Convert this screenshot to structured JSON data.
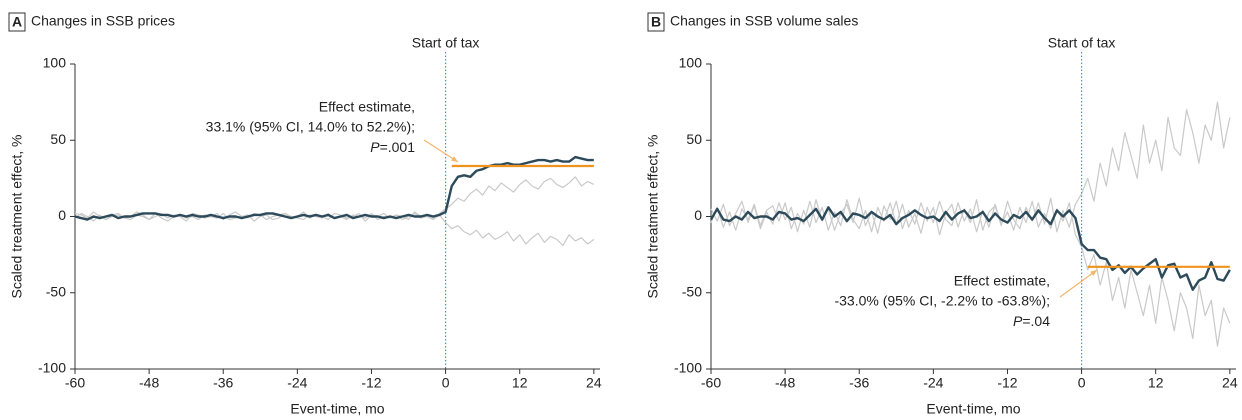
{
  "chart_data": [
    {
      "type": "line",
      "panel": "A",
      "title": "Changes in SSB prices",
      "xlabel": "Event-time, mo",
      "ylabel": "Scaled treatment effect, %",
      "event_label": "Start of tax",
      "event_x": 0,
      "annotation": [
        "Effect estimate,",
        "33.1% (95% CI, 14.0% to 52.2%);"
      ],
      "p_label": "P",
      "p_value": "=.001",
      "effect": {
        "value": 33.1,
        "x": [
          1,
          24
        ],
        "color": "#f0931e"
      },
      "xlim": [
        -60,
        25
      ],
      "ylim": [
        -100,
        100
      ],
      "xticks": [
        -60,
        -48,
        -36,
        -24,
        -12,
        0,
        12,
        24
      ],
      "yticks": [
        -100,
        -50,
        0,
        50,
        100
      ],
      "x": [
        -60,
        -59,
        -58,
        -57,
        -56,
        -55,
        -54,
        -53,
        -52,
        -51,
        -50,
        -49,
        -48,
        -47,
        -46,
        -45,
        -44,
        -43,
        -42,
        -41,
        -40,
        -39,
        -38,
        -37,
        -36,
        -35,
        -34,
        -33,
        -32,
        -31,
        -30,
        -29,
        -28,
        -27,
        -26,
        -25,
        -24,
        -23,
        -22,
        -21,
        -20,
        -19,
        -18,
        -17,
        -16,
        -15,
        -14,
        -13,
        -12,
        -11,
        -10,
        -9,
        -8,
        -7,
        -6,
        -5,
        -4,
        -3,
        -2,
        -1,
        0,
        1,
        2,
        3,
        4,
        5,
        6,
        7,
        8,
        9,
        10,
        11,
        12,
        13,
        14,
        15,
        16,
        17,
        18,
        19,
        20,
        21,
        22,
        23,
        24
      ],
      "placebo_color": "#c9c9c9",
      "placebo": [
        [
          2,
          1,
          -1,
          3,
          0,
          -2,
          1,
          2,
          -1,
          0,
          3,
          1,
          -2,
          0,
          2,
          -1,
          1,
          0,
          -3,
          2,
          1,
          -1,
          0,
          2,
          -2,
          1,
          3,
          0,
          -1,
          2,
          1,
          -2,
          0,
          1,
          2,
          -1,
          0,
          3,
          -1,
          1,
          0,
          -2,
          2,
          1,
          -1,
          0,
          2,
          -3,
          1,
          0,
          2,
          -1,
          1,
          0,
          -2,
          3,
          0,
          1,
          -1,
          2,
          5,
          8,
          12,
          10,
          15,
          18,
          14,
          20,
          17,
          22,
          19,
          16,
          21,
          24,
          20,
          18,
          23,
          25,
          21,
          19,
          22,
          26,
          20,
          23,
          21
        ],
        [
          -1,
          2,
          0,
          -3,
          1,
          -2,
          0,
          1,
          -1,
          -2,
          1,
          0,
          -2,
          2,
          -1,
          -3,
          0,
          1,
          -1,
          0,
          -2,
          1,
          0,
          -1,
          2,
          -2,
          -1,
          0,
          1,
          -3,
          0,
          1,
          -2,
          -1,
          2,
          0,
          -1,
          -2,
          1,
          0,
          -1,
          2,
          -1,
          0,
          -2,
          1,
          0,
          -1,
          2,
          -2,
          0,
          -1,
          1,
          -2,
          0,
          2,
          -1,
          0,
          -2,
          1,
          -4,
          -8,
          -6,
          -10,
          -12,
          -9,
          -14,
          -11,
          -15,
          -13,
          -10,
          -16,
          -12,
          -18,
          -14,
          -11,
          -17,
          -13,
          -15,
          -19,
          -12,
          -16,
          -14,
          -18,
          -15
        ]
      ],
      "series": [
        {
          "color": "#2c4a5a",
          "values": [
            0,
            -1,
            -2,
            0,
            -1,
            0,
            1,
            -1,
            0,
            0,
            1,
            2,
            2,
            2,
            1,
            1,
            0,
            1,
            0,
            1,
            0,
            0,
            1,
            0,
            -1,
            0,
            0,
            -1,
            0,
            1,
            1,
            2,
            2,
            1,
            0,
            -1,
            0,
            1,
            0,
            1,
            0,
            1,
            -1,
            0,
            1,
            -1,
            0,
            1,
            0,
            0,
            -1,
            0,
            -1,
            0,
            1,
            0,
            0,
            1,
            0,
            1,
            3,
            20,
            26,
            27,
            26,
            30,
            31,
            33,
            34,
            34,
            35,
            34,
            34,
            35,
            36,
            37,
            37,
            36,
            37,
            36,
            36,
            39,
            38,
            37,
            37
          ]
        }
      ]
    },
    {
      "type": "line",
      "panel": "B",
      "title": "Changes in SSB volume sales",
      "xlabel": "Event-time, mo",
      "ylabel": "Scaled treatment effect, %",
      "event_label": "Start of tax",
      "event_x": 0,
      "annotation": [
        "Effect estimate,",
        "-33.0% (95% CI, -2.2% to -63.8%);"
      ],
      "p_label": "P",
      "p_value": "=.04",
      "effect": {
        "value": -33.0,
        "x": [
          1,
          24
        ],
        "color": "#f0931e"
      },
      "xlim": [
        -60,
        25
      ],
      "ylim": [
        -100,
        100
      ],
      "xticks": [
        -60,
        -48,
        -36,
        -24,
        -12,
        0,
        12,
        24
      ],
      "yticks": [
        -100,
        -50,
        0,
        50,
        100
      ],
      "x": [
        -60,
        -59,
        -58,
        -57,
        -56,
        -55,
        -54,
        -53,
        -52,
        -51,
        -50,
        -49,
        -48,
        -47,
        -46,
        -45,
        -44,
        -43,
        -42,
        -41,
        -40,
        -39,
        -38,
        -37,
        -36,
        -35,
        -34,
        -33,
        -32,
        -31,
        -30,
        -29,
        -28,
        -27,
        -26,
        -25,
        -24,
        -23,
        -22,
        -21,
        -20,
        -19,
        -18,
        -17,
        -16,
        -15,
        -14,
        -13,
        -12,
        -11,
        -10,
        -9,
        -8,
        -7,
        -6,
        -5,
        -4,
        -3,
        -2,
        -1,
        0,
        1,
        2,
        3,
        4,
        5,
        6,
        7,
        8,
        9,
        10,
        11,
        12,
        13,
        14,
        15,
        16,
        17,
        18,
        19,
        20,
        21,
        22,
        23,
        24
      ],
      "placebo_color": "#c9c9c9",
      "placebo": [
        [
          5,
          -3,
          8,
          -6,
          2,
          10,
          -4,
          7,
          -8,
          3,
          -5,
          9,
          -2,
          6,
          -10,
          4,
          -7,
          11,
          -3,
          5,
          -9,
          2,
          8,
          -4,
          12,
          -6,
          3,
          -11,
          7,
          -2,
          10,
          -8,
          4,
          -5,
          9,
          -3,
          6,
          -12,
          2,
          8,
          -7,
          5,
          -4,
          11,
          -9,
          3,
          7,
          -6,
          10,
          -2,
          -8,
          6,
          -3,
          9,
          -5,
          12,
          -10,
          4,
          -7,
          8,
          15,
          25,
          10,
          35,
          20,
          45,
          30,
          55,
          40,
          25,
          60,
          35,
          50,
          30,
          65,
          45,
          40,
          70,
          55,
          35,
          60,
          50,
          75,
          45,
          65
        ],
        [
          -4,
          6,
          -7,
          3,
          -9,
          5,
          -2,
          8,
          -6,
          4,
          7,
          -3,
          9,
          -8,
          2,
          -5,
          10,
          -4,
          6,
          -9,
          3,
          -6,
          11,
          -2,
          -8,
          4,
          -10,
          6,
          -3,
          9,
          -5,
          8,
          -7,
          2,
          -11,
          6,
          -4,
          10,
          -2,
          -6,
          9,
          -3,
          5,
          -10,
          4,
          -7,
          8,
          -5,
          3,
          -9,
          6,
          -4,
          10,
          -7,
          2,
          -8,
          5,
          -3,
          9,
          -12,
          -20,
          -35,
          -25,
          -45,
          -30,
          -55,
          -40,
          -60,
          -35,
          -50,
          -65,
          -45,
          -70,
          -40,
          -55,
          -75,
          -50,
          -60,
          -80,
          -45,
          -65,
          -55,
          -85,
          -60,
          -70
        ]
      ],
      "series": [
        {
          "color": "#2c4a5a",
          "values": [
            -2,
            5,
            -2,
            -3,
            0,
            -2,
            3,
            -1,
            0,
            0,
            -2,
            3,
            2,
            -2,
            -1,
            -3,
            1,
            5,
            -2,
            6,
            0,
            3,
            -3,
            2,
            1,
            -1,
            3,
            0,
            -2,
            1,
            -5,
            -1,
            1,
            4,
            1,
            -1,
            0,
            -3,
            3,
            -2,
            2,
            4,
            -1,
            0,
            3,
            -3,
            2,
            -2,
            -4,
            1,
            -1,
            3,
            -2,
            4,
            -1,
            -5,
            4,
            0,
            4,
            -1,
            -18,
            -22,
            -22,
            -27,
            -28,
            -35,
            -32,
            -37,
            -33,
            -38,
            -34,
            -31,
            -28,
            -40,
            -32,
            -31,
            -40,
            -38,
            -48,
            -42,
            -40,
            -30,
            -41,
            -42,
            -35
          ]
        }
      ]
    }
  ]
}
